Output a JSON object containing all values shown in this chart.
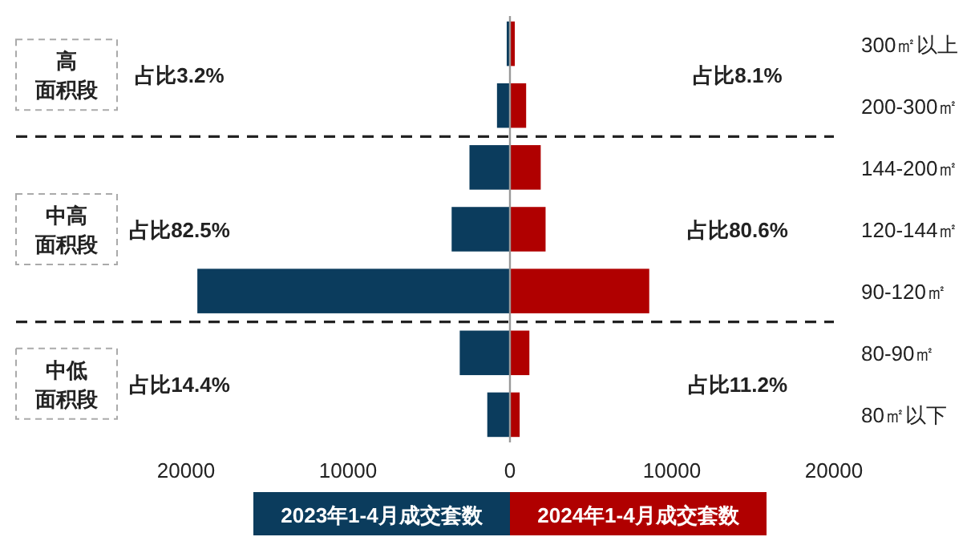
{
  "chart_data": {
    "type": "bar",
    "orientation": "horizontal",
    "categories": [
      "300㎡以上",
      "200-300㎡",
      "144-200㎡",
      "120-144㎡",
      "90-120㎡",
      "80-90㎡",
      "80㎡以下"
    ],
    "stacked": true,
    "series": [
      {
        "name": "2023年1-4月成交套数",
        "color": "#0b3c5d",
        "values": [
          -200,
          -800,
          -2500,
          -3600,
          -19300,
          -3100,
          -1400
        ]
      },
      {
        "name": "2024年1-4月成交套数",
        "color": "#b00000",
        "values": [
          300,
          1000,
          1900,
          2200,
          8600,
          1200,
          600
        ]
      }
    ],
    "xlim": [
      -20000,
      20000
    ],
    "xticks": [
      {
        "value": -20000,
        "label": "20000"
      },
      {
        "value": -10000,
        "label": "10000"
      },
      0,
      10000,
      20000
    ],
    "legend": "bottom",
    "grid": false,
    "annotations": [
      "高",
      "面积段",
      "占比3.2%",
      "占比8.1%",
      "中高",
      "面积段",
      "占比82.5%",
      "占比80.6%",
      "中低",
      "面积段",
      "占比14.4%",
      "占比11.2%"
    ]
  }
}
